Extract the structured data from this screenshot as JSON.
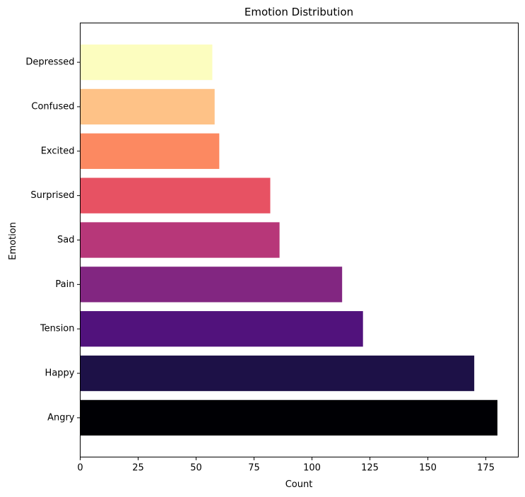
{
  "chart_data": {
    "type": "bar",
    "orientation": "horizontal",
    "title": "Emotion Distribution",
    "xlabel": "Count",
    "ylabel": "Emotion",
    "categories": [
      "Angry",
      "Happy",
      "Tension",
      "Pain",
      "Sad",
      "Surprised",
      "Excited",
      "Confused",
      "Depressed"
    ],
    "values": [
      180,
      170,
      122,
      113,
      86,
      82,
      60,
      58,
      57
    ],
    "colors": [
      "#000004",
      "#1d1147",
      "#51127c",
      "#822681",
      "#b73779",
      "#e75263",
      "#fc8961",
      "#fec287",
      "#fcfdbf"
    ],
    "xlim": [
      0,
      189
    ],
    "xticks": [
      0,
      25,
      50,
      75,
      100,
      125,
      150,
      175
    ],
    "grid": false,
    "legend": "none"
  }
}
